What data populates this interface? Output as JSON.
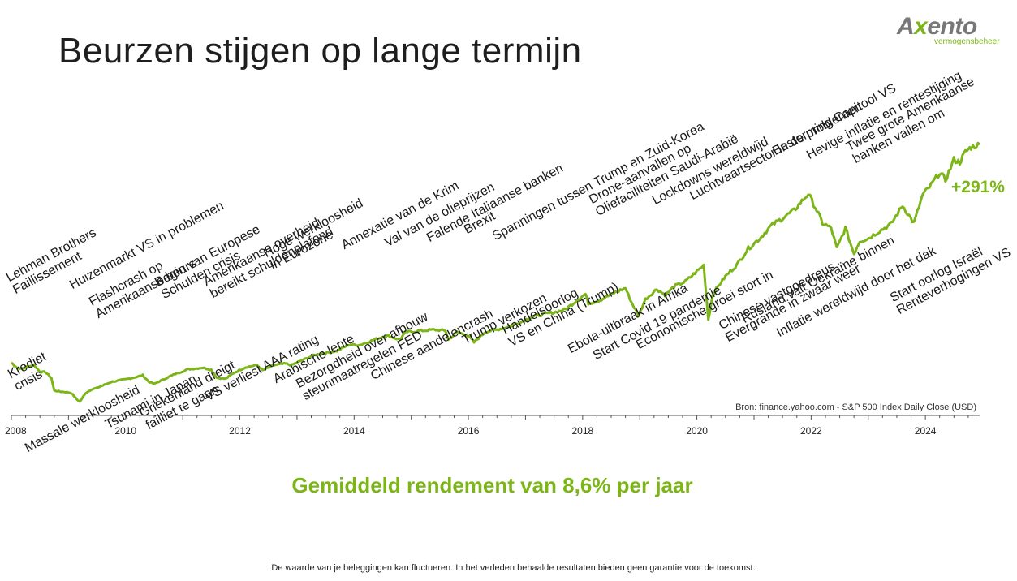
{
  "title": "Beurzen stijgen op lange termijn",
  "logo": {
    "brand_a": "A",
    "brand_x": "x",
    "brand_rest": "ento",
    "subtitle": "vermogensbeheer"
  },
  "colors": {
    "accent": "#7cb518",
    "text": "#1a1a1a",
    "axis": "#555555"
  },
  "source": "Bron: finance.yahoo.com - S&P 500 Index Daily Close (USD)",
  "gain_label": "+291%",
  "average_return": "Gemiddeld rendement van 8,6% per jaar",
  "disclaimer": "De waarde van je beleggingen kan fluctueren. In het verleden behaalde resultaten bieden geen garantie voor de toekomst.",
  "chart_data": {
    "type": "line",
    "title": "Beurzen stijgen op lange termijn",
    "xlabel": "",
    "ylabel": "",
    "x_ticks": [
      "2008",
      "2010",
      "2012",
      "2014",
      "2016",
      "2018",
      "2020",
      "2022",
      "2024"
    ],
    "xlim": [
      2008.0,
      2024.95
    ],
    "ylim": [
      600,
      6200
    ],
    "grid": false,
    "series": [
      {
        "values": [
          [
            2008.0,
            1450
          ],
          [
            2008.1,
            1350
          ],
          [
            2008.2,
            1330
          ],
          [
            2008.3,
            1380
          ],
          [
            2008.4,
            1400
          ],
          [
            2008.5,
            1270
          ],
          [
            2008.6,
            1260
          ],
          [
            2008.7,
            1150
          ],
          [
            2008.75,
            900
          ],
          [
            2008.85,
            880
          ],
          [
            2008.95,
            870
          ],
          [
            2009.05,
            850
          ],
          [
            2009.15,
            720
          ],
          [
            2009.2,
            680
          ],
          [
            2009.3,
            850
          ],
          [
            2009.4,
            920
          ],
          [
            2009.5,
            950
          ],
          [
            2009.6,
            1000
          ],
          [
            2009.75,
            1070
          ],
          [
            2010.0,
            1120
          ],
          [
            2010.2,
            1170
          ],
          [
            2010.3,
            1200
          ],
          [
            2010.4,
            1080
          ],
          [
            2010.5,
            1030
          ],
          [
            2010.7,
            1140
          ],
          [
            2010.9,
            1240
          ],
          [
            2011.1,
            1320
          ],
          [
            2011.35,
            1350
          ],
          [
            2011.5,
            1310
          ],
          [
            2011.6,
            1150
          ],
          [
            2011.75,
            1130
          ],
          [
            2011.9,
            1250
          ],
          [
            2012.1,
            1360
          ],
          [
            2012.3,
            1400
          ],
          [
            2012.4,
            1300
          ],
          [
            2012.6,
            1400
          ],
          [
            2012.8,
            1430
          ],
          [
            2012.9,
            1400
          ],
          [
            2013.1,
            1500
          ],
          [
            2013.3,
            1600
          ],
          [
            2013.5,
            1640
          ],
          [
            2013.7,
            1680
          ],
          [
            2013.9,
            1800
          ],
          [
            2014.1,
            1800
          ],
          [
            2014.3,
            1880
          ],
          [
            2014.5,
            1960
          ],
          [
            2014.6,
            1980
          ],
          [
            2014.8,
            1900
          ],
          [
            2014.9,
            2050
          ],
          [
            2015.2,
            2080
          ],
          [
            2015.4,
            2100
          ],
          [
            2015.6,
            2080
          ],
          [
            2015.65,
            1900
          ],
          [
            2015.8,
            2050
          ],
          [
            2016.0,
            1980
          ],
          [
            2016.1,
            1850
          ],
          [
            2016.3,
            2060
          ],
          [
            2016.5,
            2100
          ],
          [
            2016.7,
            2160
          ],
          [
            2016.9,
            2240
          ],
          [
            2017.1,
            2350
          ],
          [
            2017.3,
            2400
          ],
          [
            2017.5,
            2440
          ],
          [
            2017.7,
            2500
          ],
          [
            2017.9,
            2680
          ],
          [
            2018.05,
            2800
          ],
          [
            2018.1,
            2620
          ],
          [
            2018.3,
            2680
          ],
          [
            2018.6,
            2850
          ],
          [
            2018.75,
            2920
          ],
          [
            2018.85,
            2650
          ],
          [
            2018.98,
            2380
          ],
          [
            2019.1,
            2700
          ],
          [
            2019.3,
            2900
          ],
          [
            2019.45,
            2780
          ],
          [
            2019.6,
            2950
          ],
          [
            2019.8,
            3050
          ],
          [
            2020.0,
            3250
          ],
          [
            2020.12,
            3370
          ],
          [
            2020.2,
            2300
          ],
          [
            2020.28,
            2800
          ],
          [
            2020.4,
            3000
          ],
          [
            2020.5,
            3150
          ],
          [
            2020.7,
            3380
          ],
          [
            2020.9,
            3700
          ],
          [
            2021.1,
            3900
          ],
          [
            2021.3,
            4150
          ],
          [
            2021.5,
            4300
          ],
          [
            2021.7,
            4450
          ],
          [
            2021.95,
            4780
          ],
          [
            2022.1,
            4450
          ],
          [
            2022.2,
            4200
          ],
          [
            2022.35,
            4100
          ],
          [
            2022.45,
            3700
          ],
          [
            2022.6,
            4100
          ],
          [
            2022.75,
            3600
          ],
          [
            2022.85,
            3850
          ],
          [
            2023.0,
            3900
          ],
          [
            2023.2,
            4050
          ],
          [
            2023.4,
            4180
          ],
          [
            2023.6,
            4550
          ],
          [
            2023.8,
            4200
          ],
          [
            2023.95,
            4750
          ],
          [
            2024.1,
            4950
          ],
          [
            2024.25,
            5200
          ],
          [
            2024.35,
            5050
          ],
          [
            2024.5,
            5450
          ],
          [
            2024.6,
            5400
          ],
          [
            2024.7,
            5600
          ],
          [
            2024.8,
            5700
          ],
          [
            2024.95,
            5750
          ]
        ]
      }
    ],
    "annotations_above": [
      {
        "date": 2008.1,
        "lines": [
          "Lehman Brothers",
          "Faillissement"
        ]
      },
      {
        "date": 2009.1,
        "lines": [
          "Huizenmarkt VS in problemen"
        ]
      },
      {
        "date": 2009.55,
        "lines": [
          "Flashcrash op",
          "Amerikaanse beurs"
        ]
      },
      {
        "date": 2010.7,
        "lines": [
          "Begin van Europese",
          "Schulden crisis"
        ]
      },
      {
        "date": 2011.55,
        "lines": [
          "Amerikaanse overheid",
          "bereikt schuldenplafond"
        ]
      },
      {
        "date": 2012.6,
        "lines": [
          "Hoge werkloosheid",
          "in Eurozone"
        ]
      },
      {
        "date": 2013.85,
        "lines": [
          "Annexatie van de Krim"
        ]
      },
      {
        "date": 2014.6,
        "lines": [
          "Val van de olieprijzen"
        ]
      },
      {
        "date": 2015.35,
        "lines": [
          "Falende Italiaanse banken"
        ]
      },
      {
        "date": 2016.0,
        "lines": [
          "Brexit"
        ]
      },
      {
        "date": 2016.5,
        "lines": [
          "Spanningen tussen Trump en Zuid-Korea"
        ]
      },
      {
        "date": 2018.3,
        "lines": [
          "Drone-aanvallen op",
          "Oliefaciliteiten Saudi-Arabië"
        ]
      },
      {
        "date": 2019.3,
        "lines": [
          "Lockdowns wereldwijd"
        ]
      },
      {
        "date": 2019.95,
        "lines": [
          "Luchtvaartsector in de problemen"
        ]
      },
      {
        "date": 2021.4,
        "lines": [
          "Bestorming Capitool VS"
        ]
      },
      {
        "date": 2022.0,
        "lines": [
          "Hevige inflatie en rentestijging"
        ]
      },
      {
        "date": 2022.8,
        "lines": [
          "Twee grote Amerikaanse",
          "banken vallen om"
        ]
      }
    ],
    "annotations_below": [
      {
        "date": 2007.9,
        "lines": [
          "Krediet",
          "crisis"
        ]
      },
      {
        "date": 2008.2,
        "lines": [
          "Massale werkloosheid"
        ]
      },
      {
        "date": 2009.6,
        "lines": [
          "Tsunami in Japan"
        ]
      },
      {
        "date": 2010.2,
        "lines": [
          "Griekenland dreigt",
          "failliet te gaan"
        ]
      },
      {
        "date": 2011.35,
        "lines": [
          "VS verliest AAA rating"
        ]
      },
      {
        "date": 2012.55,
        "lines": [
          "Arabische lente"
        ]
      },
      {
        "date": 2012.95,
        "lines": [
          "Bezorgdheid over afbouw",
          "steunmaatregelen FED"
        ]
      },
      {
        "date": 2014.25,
        "lines": [
          "Chinese aandelencrash"
        ]
      },
      {
        "date": 2015.85,
        "lines": [
          "Trump verkozen"
        ]
      },
      {
        "date": 2016.55,
        "lines": [
          "Handelsoorlog",
          "VS en China (Trump)"
        ]
      },
      {
        "date": 2017.7,
        "lines": [
          "Ebola-uitbraak in Afrika"
        ]
      },
      {
        "date": 2018.15,
        "lines": [
          "Start Covid 19 pandemie"
        ]
      },
      {
        "date": 2018.9,
        "lines": [
          "Economische groei stort in"
        ]
      },
      {
        "date": 2020.35,
        "lines": [
          "Chinese vastgoedreus",
          "Evergrande in zwaar weer"
        ]
      },
      {
        "date": 2020.75,
        "lines": [
          "Rusland valt Oekraïne binnen"
        ]
      },
      {
        "date": 2021.35,
        "lines": [
          "Inflatie wereldwijd door het dak"
        ]
      },
      {
        "date": 2023.35,
        "lines": [
          "Start oorlog Israël",
          "Renteverhogingen VS"
        ]
      }
    ]
  }
}
